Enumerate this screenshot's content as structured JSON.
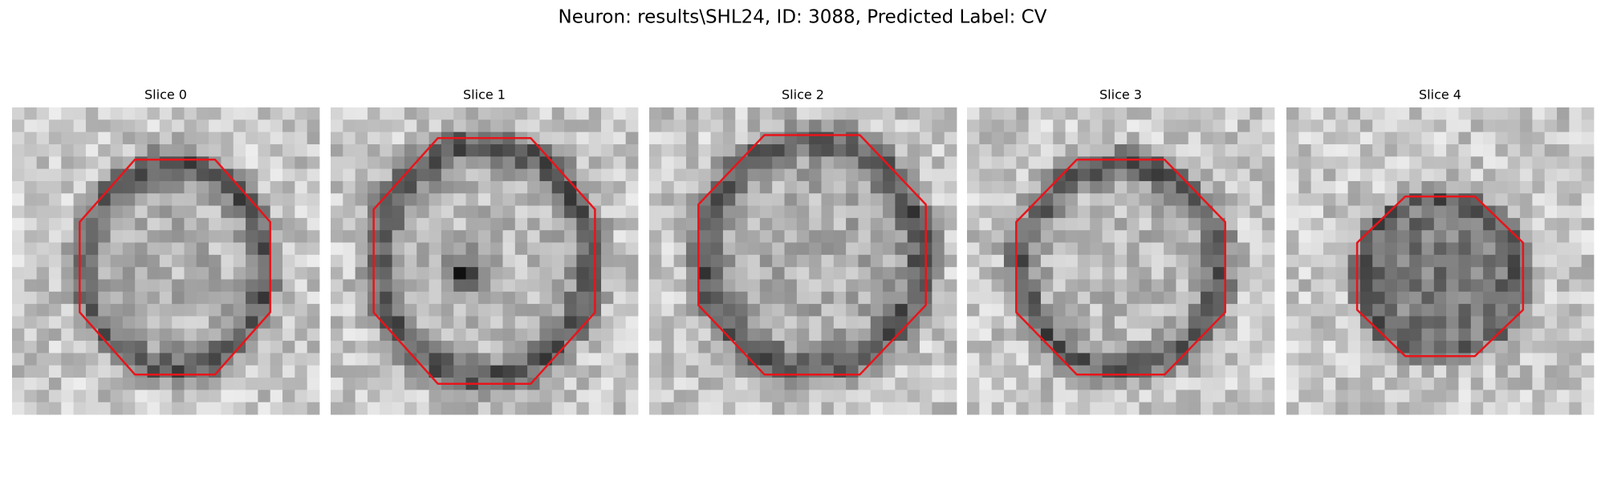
{
  "header": {
    "title": "Neuron: results\\SHL24, ID: 3088, Predicted Label: CV"
  },
  "panels": [
    {
      "title": "Slice 0"
    },
    {
      "title": "Slice 1"
    },
    {
      "title": "Slice 2"
    },
    {
      "title": "Slice 3"
    },
    {
      "title": "Slice 4"
    }
  ]
}
